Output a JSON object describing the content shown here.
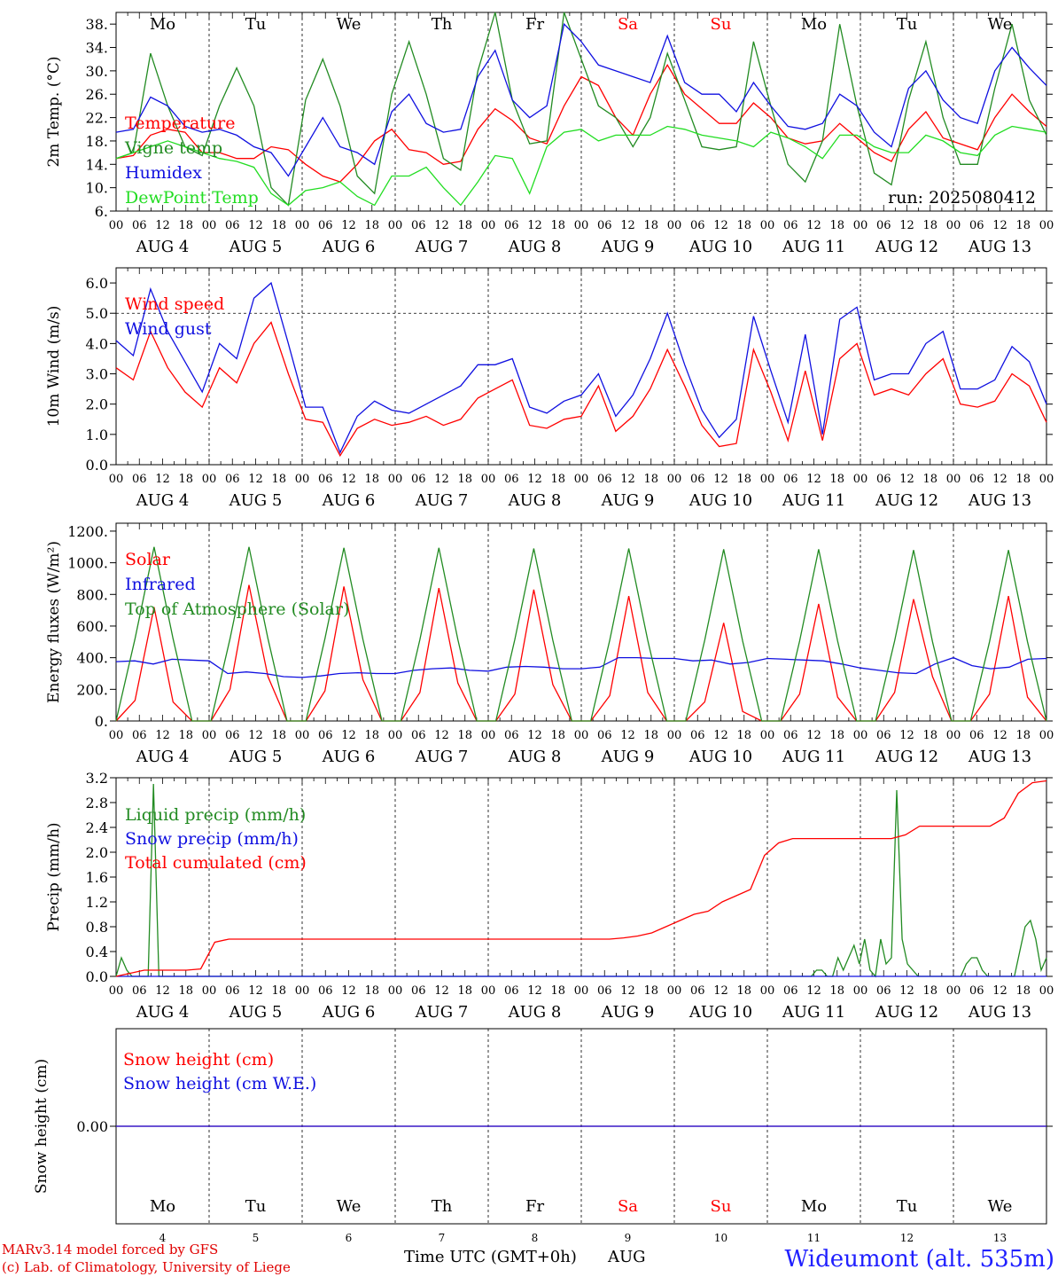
{
  "colors": {
    "red": "#ff0000",
    "green": "#228b22",
    "blue": "#1010e0",
    "lightgreen": "#22dd22",
    "weekend": "#ff0000",
    "text": "#000000"
  },
  "days": {
    "dow": [
      "Mo",
      "Tu",
      "We",
      "Th",
      "Fr",
      "Sa",
      "Su",
      "Mo",
      "Tu",
      "We"
    ],
    "weekend_index": [
      5,
      6
    ],
    "dates": [
      "AUG  4",
      "AUG  5",
      "AUG  6",
      "AUG  7",
      "AUG  8",
      "AUG  9",
      "AUG 10",
      "AUG 11",
      "AUG 12",
      "AUG 13"
    ],
    "day_numbers": [
      "4",
      "5",
      "6",
      "7",
      "8",
      "9",
      "10",
      "11",
      "12",
      "13"
    ],
    "hours": [
      "00",
      "06",
      "12",
      "18"
    ],
    "end_hour": "00"
  },
  "footer": {
    "model": "MARv3.14 model forced by GFS",
    "lab": "(c) Lab. of Climatology, University of Liege",
    "axis_title": "Time UTC (GMT+0h)",
    "month": "AUG",
    "station": "Wideumont (alt. 535m)"
  },
  "chart_data": [
    {
      "id": "temperature",
      "type": "line",
      "ylabel": "2m Temp. (°C)",
      "ylim": [
        6,
        40
      ],
      "ticks": [
        "6.",
        "10.",
        "14.",
        "18.",
        "22.",
        "26.",
        "30.",
        "34.",
        "38."
      ],
      "tick_values": [
        6,
        10,
        14,
        18,
        22,
        26,
        30,
        34,
        38
      ],
      "run": "run: 2025080412",
      "x_step_hours": 6,
      "series": [
        {
          "name": "Temperature",
          "color": "red",
          "values": [
            15.0,
            15.5,
            19.0,
            20.0,
            19.5,
            16.0,
            16.0,
            15.0,
            15.0,
            17.0,
            16.5,
            14.0,
            12.0,
            11.0,
            14.0,
            18.0,
            20.0,
            16.5,
            16.0,
            14.0,
            14.5,
            20.0,
            23.5,
            21.5,
            18.5,
            17.5,
            24.0,
            29.0,
            27.5,
            22.0,
            19.0,
            26.0,
            31.0,
            26.0,
            23.5,
            21.0,
            21.0,
            24.5,
            22.0,
            18.5,
            17.5,
            18.0,
            21.0,
            18.5,
            16.0,
            14.5,
            20.0,
            23.0,
            18.5,
            17.5,
            16.5,
            22.0,
            26.0,
            23.0,
            20.5
          ]
        },
        {
          "name": "Vigne temp",
          "color": "green",
          "values": [
            15.0,
            16.0,
            33.0,
            24.0,
            17.0,
            15.5,
            24.0,
            30.5,
            24.0,
            10.0,
            7.0,
            25.0,
            32.0,
            24.0,
            12.0,
            9.0,
            26.0,
            35.0,
            26.0,
            15.0,
            13.0,
            30.0,
            40.0,
            25.0,
            17.5,
            18.0,
            40.0,
            32.0,
            24.0,
            22.0,
            17.0,
            22.0,
            33.0,
            25.0,
            17.0,
            16.5,
            17.0,
            35.0,
            24.0,
            14.0,
            11.0,
            18.0,
            38.0,
            24.0,
            12.5,
            10.5,
            25.0,
            35.0,
            22.0,
            14.0,
            14.0,
            27.0,
            38.0,
            25.0,
            19.0
          ]
        },
        {
          "name": "Humidex",
          "color": "blue",
          "values": [
            19.5,
            20.0,
            25.5,
            24.0,
            20.5,
            19.5,
            20.0,
            19.0,
            17.0,
            16.0,
            12.0,
            17.0,
            22.0,
            17.0,
            16.0,
            14.0,
            23.0,
            26.0,
            21.0,
            19.5,
            20.0,
            29.0,
            33.5,
            25.0,
            22.0,
            24.0,
            38.0,
            35.0,
            31.0,
            30.0,
            29.0,
            28.0,
            36.0,
            28.0,
            26.0,
            26.0,
            23.0,
            28.0,
            24.0,
            20.5,
            20.0,
            21.0,
            26.0,
            24.0,
            19.5,
            17.0,
            27.0,
            30.0,
            25.0,
            22.0,
            21.0,
            30.0,
            34.0,
            30.5,
            27.5
          ]
        },
        {
          "name": "DewPoint Temp",
          "color": "lightgreen",
          "values": [
            15.0,
            16.0,
            17.0,
            18.0,
            17.0,
            16.0,
            15.0,
            14.5,
            13.5,
            9.0,
            7.0,
            9.5,
            10.0,
            11.0,
            8.5,
            7.0,
            12.0,
            12.0,
            13.5,
            10.0,
            7.0,
            11.0,
            15.5,
            15.0,
            9.0,
            17.0,
            19.5,
            20.0,
            18.0,
            19.0,
            19.0,
            19.0,
            20.5,
            20.0,
            19.0,
            18.5,
            18.0,
            17.0,
            19.5,
            18.5,
            17.0,
            15.0,
            19.0,
            19.0,
            17.0,
            16.0,
            16.0,
            19.0,
            18.0,
            16.0,
            15.5,
            19.0,
            20.5,
            20.0,
            19.5
          ]
        }
      ]
    },
    {
      "id": "wind",
      "type": "line",
      "ylabel": "10m Wind (m/s)",
      "ylim": [
        0,
        6.5
      ],
      "ticks": [
        "0.0",
        "1.0",
        "2.0",
        "3.0",
        "4.0",
        "5.0",
        "6.0"
      ],
      "tick_values": [
        0,
        1,
        2,
        3,
        4,
        5,
        6
      ],
      "reference_line": 5.0,
      "x_step_hours": 6,
      "series": [
        {
          "name": "Wind speed",
          "color": "red",
          "values": [
            3.2,
            2.8,
            4.4,
            3.2,
            2.4,
            1.9,
            3.2,
            2.7,
            4.0,
            4.7,
            3.0,
            1.5,
            1.4,
            0.3,
            1.2,
            1.5,
            1.3,
            1.4,
            1.6,
            1.3,
            1.5,
            2.2,
            2.5,
            2.8,
            1.3,
            1.2,
            1.5,
            1.6,
            2.6,
            1.1,
            1.6,
            2.5,
            3.8,
            2.6,
            1.3,
            0.6,
            0.7,
            3.8,
            2.4,
            0.8,
            3.1,
            0.8,
            3.5,
            4.0,
            2.3,
            2.5,
            2.3,
            3.0,
            3.5,
            2.0,
            1.9,
            2.1,
            3.0,
            2.6,
            1.4
          ]
        },
        {
          "name": "Wind gust",
          "color": "blue",
          "values": [
            4.1,
            3.6,
            5.8,
            4.4,
            3.4,
            2.4,
            4.0,
            3.5,
            5.5,
            6.0,
            4.0,
            1.9,
            1.9,
            0.4,
            1.6,
            2.1,
            1.8,
            1.7,
            2.0,
            2.3,
            2.6,
            3.3,
            3.3,
            3.5,
            1.9,
            1.7,
            2.1,
            2.3,
            3.0,
            1.6,
            2.3,
            3.5,
            5.0,
            3.3,
            1.8,
            0.9,
            1.5,
            4.9,
            3.1,
            1.4,
            4.3,
            1.0,
            4.8,
            5.2,
            2.8,
            3.0,
            3.0,
            4.0,
            4.4,
            2.5,
            2.5,
            2.8,
            3.9,
            3.4,
            2.0
          ]
        }
      ]
    },
    {
      "id": "energy",
      "type": "line",
      "ylabel": "Energy fluxes (W/m²)",
      "ylim": [
        0,
        1250
      ],
      "ticks": [
        "0.",
        "200.",
        "400.",
        "600.",
        "800.",
        "1000.",
        "1200."
      ],
      "tick_values": [
        0,
        200,
        400,
        600,
        800,
        1000,
        1200
      ],
      "x_step_hours": 6,
      "series": [
        {
          "name": "Solar",
          "color": "red",
          "values": [
            0,
            130,
            720,
            120,
            0,
            0,
            200,
            860,
            280,
            0,
            0,
            190,
            850,
            260,
            0,
            0,
            180,
            840,
            240,
            0,
            0,
            170,
            830,
            230,
            0,
            0,
            160,
            790,
            180,
            0,
            0,
            120,
            620,
            60,
            0,
            0,
            170,
            740,
            150,
            0,
            0,
            180,
            770,
            280,
            0,
            0,
            170,
            790,
            150,
            0
          ]
        },
        {
          "name": "Infrared",
          "color": "blue",
          "values": [
            375,
            380,
            360,
            390,
            385,
            380,
            300,
            310,
            300,
            280,
            275,
            285,
            300,
            305,
            300,
            300,
            320,
            330,
            335,
            320,
            315,
            340,
            345,
            340,
            330,
            330,
            340,
            400,
            400,
            395,
            395,
            380,
            385,
            360,
            370,
            395,
            390,
            385,
            380,
            360,
            335,
            320,
            305,
            300,
            360,
            400,
            350,
            330,
            340,
            390,
            395
          ]
        },
        {
          "name": "Top of Atmosphere (Solar)",
          "color": "green",
          "values": [
            0,
            520,
            1100,
            520,
            0,
            0,
            520,
            1100,
            520,
            0,
            0,
            520,
            1095,
            515,
            0,
            0,
            515,
            1095,
            515,
            0,
            0,
            515,
            1090,
            510,
            0,
            0,
            510,
            1090,
            510,
            0,
            0,
            510,
            1085,
            505,
            0,
            0,
            505,
            1085,
            505,
            0,
            0,
            505,
            1080,
            500,
            0,
            0,
            500,
            1080,
            500,
            0
          ]
        }
      ]
    },
    {
      "id": "precip",
      "type": "line",
      "ylabel": "Precip (mm/h)",
      "ylim": [
        0,
        3.2
      ],
      "ticks": [
        "0.0",
        "0.4",
        "0.8",
        "1.2",
        "1.6",
        "2.0",
        "2.4",
        "2.8",
        "3.2"
      ],
      "tick_values": [
        0,
        0.4,
        0.8,
        1.2,
        1.6,
        2.0,
        2.4,
        2.8,
        3.2
      ],
      "x_step_hours": 6,
      "series": [
        {
          "name": "Liquid precip (mm/h)",
          "color": "green",
          "values": [
            0.0,
            0.3,
            0.1,
            0.0,
            0.0,
            0.0,
            0.0,
            3.1,
            0.0,
            0.0,
            0.0,
            0.0,
            0.0,
            0.0,
            0.0,
            0.0,
            0.0,
            0.0,
            0.0,
            0.0,
            0.0,
            0.0,
            0.0,
            0.0,
            0.0,
            0.0,
            0.0,
            0.0,
            0.0,
            0.0,
            0.0,
            0.0,
            0.0,
            0.0,
            0.0,
            0.0,
            0.0,
            0.0,
            0.0,
            0.0,
            0.0,
            0.0,
            0.0,
            0.0,
            0.0,
            0.0,
            0.0,
            0.0,
            0.0,
            0.0,
            0.0,
            0.0,
            0.0,
            0.0,
            0.0,
            0.0,
            0.0,
            0.0,
            0.0,
            0.0,
            0.0,
            0.0,
            0.0,
            0.0,
            0.0,
            0.0,
            0.0,
            0.0,
            0.0,
            0.0,
            0.0,
            0.0,
            0.0,
            0.0,
            0.0,
            0.0,
            0.0,
            0.0,
            0.0,
            0.0,
            0.0,
            0.0,
            0.0,
            0.0,
            0.0,
            0.0,
            0.0,
            0.0,
            0.0,
            0.0,
            0.0,
            0.0,
            0.0,
            0.0,
            0.0,
            0.0,
            0.0,
            0.0,
            0.0,
            0.0,
            0.0,
            0.0,
            0.0,
            0.0,
            0.0,
            0.0,
            0.0,
            0.0,
            0.0,
            0.0,
            0.0,
            0.0,
            0.0,
            0.0,
            0.0,
            0.0,
            0.0,
            0.0,
            0.0,
            0.0,
            0.0,
            0.0,
            0.0,
            0.0,
            0.0,
            0.0,
            0.0,
            0.0,
            0.0,
            0.0,
            0.0,
            0.1,
            0.1,
            0.0,
            0.0,
            0.3,
            0.1,
            0.3,
            0.5,
            0.2,
            0.6,
            0.1,
            0.0,
            0.6,
            0.2,
            0.3,
            3.0,
            0.6,
            0.2,
            0.1,
            0.0,
            0.0,
            0.0,
            0.0,
            0.0,
            0.0,
            0.0,
            0.0,
            0.0,
            0.2,
            0.3,
            0.3,
            0.1,
            0.0,
            0.0,
            0.0,
            0.0,
            0.0,
            0.0,
            0.4,
            0.8,
            0.9,
            0.6,
            0.1,
            0.3
          ]
        },
        {
          "name": "Snow precip (mm/h)",
          "color": "blue",
          "values": [
            0.0,
            0.0
          ]
        },
        {
          "name": "Total cumulated (cm)",
          "color": "red",
          "values": [
            0.0,
            0.05,
            0.1,
            0.1,
            0.1,
            0.1,
            0.12,
            0.55,
            0.6,
            0.6,
            0.6,
            0.6,
            0.6,
            0.6,
            0.6,
            0.6,
            0.6,
            0.6,
            0.6,
            0.6,
            0.6,
            0.6,
            0.6,
            0.6,
            0.6,
            0.6,
            0.6,
            0.6,
            0.6,
            0.6,
            0.6,
            0.6,
            0.6,
            0.6,
            0.6,
            0.6,
            0.62,
            0.65,
            0.7,
            0.8,
            0.9,
            1.0,
            1.05,
            1.2,
            1.3,
            1.4,
            1.95,
            2.15,
            2.22,
            2.22,
            2.22,
            2.22,
            2.22,
            2.22,
            2.22,
            2.22,
            2.28,
            2.42,
            2.42,
            2.42,
            2.42,
            2.42,
            2.42,
            2.55,
            2.95,
            3.12,
            3.15
          ]
        }
      ]
    },
    {
      "id": "snow",
      "type": "line",
      "ylabel": "Snow height (cm)",
      "ylim": [
        -1,
        1
      ],
      "ticks": [
        "0.00"
      ],
      "tick_values": [
        0
      ],
      "x_step_hours": 6,
      "series": [
        {
          "name": "Snow height (cm)",
          "color": "red",
          "values": [
            0,
            0
          ]
        },
        {
          "name": "Snow height (cm W.E.)",
          "color": "blue",
          "values": [
            0,
            0
          ]
        }
      ]
    }
  ]
}
